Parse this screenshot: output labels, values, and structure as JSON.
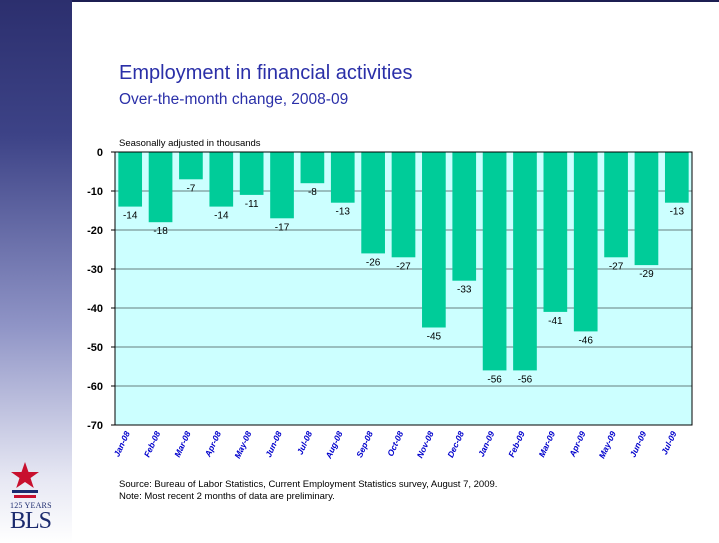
{
  "header": {
    "title": "Employment in financial activities",
    "subtitle": "Over-the-month change, 2008-09"
  },
  "chart_data": {
    "type": "bar",
    "units_note": "Seasonally adjusted in thousands",
    "categories": [
      "Jan-08",
      "Feb-08",
      "Mar-08",
      "Apr-08",
      "May-08",
      "Jun-08",
      "Jul-08",
      "Aug-08",
      "Sep-08",
      "Oct-08",
      "Nov-08",
      "Dec-08",
      "Jan-09",
      "Feb-09",
      "Mar-09",
      "Apr-09",
      "May-09",
      "Jun-09",
      "Jul-09"
    ],
    "values": [
      -14,
      -18,
      -7,
      -14,
      -11,
      -17,
      -8,
      -13,
      -26,
      -27,
      -45,
      -33,
      -56,
      -56,
      -41,
      -46,
      -27,
      -29,
      -13
    ],
    "ylim": [
      -70,
      0
    ],
    "yticks": [
      0,
      -10,
      -20,
      -30,
      -40,
      -50,
      -60,
      -70
    ],
    "grid": true,
    "colors": {
      "bar": "#00cc99",
      "plot_background": "#ccffff",
      "axis": "#000000",
      "category_labels": "#0000cc"
    }
  },
  "footnotes": {
    "source": "Source:  Bureau of Labor Statistics, Current Employment Statistics survey, August 7, 2009.",
    "note": "Note:  Most recent 2 months of data are preliminary."
  },
  "logo": {
    "years": "125 YEARS",
    "name": "BLS"
  }
}
